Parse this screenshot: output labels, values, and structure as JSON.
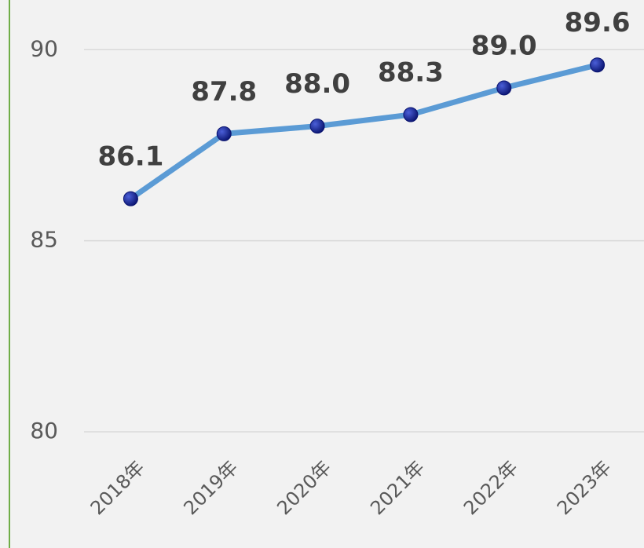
{
  "chart_data": {
    "type": "line",
    "categories": [
      "2018年",
      "2019年",
      "2020年",
      "2021年",
      "2022年",
      "2023年"
    ],
    "series": [
      {
        "color": "#5b9bd5",
        "values": [
          86.1,
          87.8,
          88.0,
          88.3,
          89.0,
          89.6
        ],
        "value_labels": [
          "86.1",
          "87.8",
          "88.0",
          "88.3",
          "89.0",
          "89.6"
        ]
      }
    ],
    "ylim": [
      80,
      91.3
    ],
    "yticks": [
      80,
      85,
      90
    ],
    "grid": true
  }
}
